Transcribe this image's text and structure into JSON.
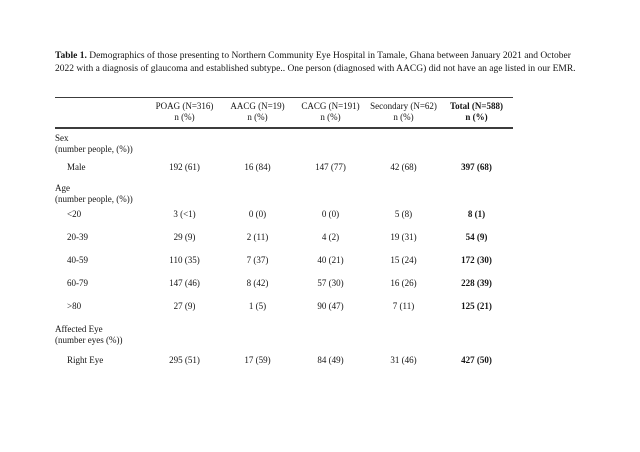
{
  "caption": {
    "label": "Table 1.",
    "text": "Demographics of those presenting to Northern Community Eye Hospital in Tamale, Ghana  between January 2021 and October 2022 with a diagnosis of glaucoma and established subtype.. One person (diagnosed with AACG) did not have an age listed in our EMR."
  },
  "table": {
    "columns": [
      {
        "label": "",
        "sub": ""
      },
      {
        "label": "POAG (N=316)",
        "sub": "n (%)"
      },
      {
        "label": "AACG (N=19)",
        "sub": "n (%)"
      },
      {
        "label": "CACG (N=191)",
        "sub": "n (%)"
      },
      {
        "label": "Secondary (N=62)",
        "sub": "n (%)"
      },
      {
        "label": "Total (N=588)",
        "sub": "n (%)"
      }
    ],
    "rows": [
      {
        "type": "section",
        "label": "Sex",
        "sublabel": "(number people, (%))"
      },
      {
        "type": "data",
        "label": "Male",
        "values": [
          "192 (61)",
          "16 (84)",
          "147 (77)",
          "42 (68)",
          "397 (68)"
        ]
      },
      {
        "type": "section",
        "label": "Age",
        "sublabel": "(number people, (%))"
      },
      {
        "type": "data",
        "label": "<20",
        "values": [
          "3 (<1)",
          "0 (0)",
          "0 (0)",
          "5 (8)",
          "8 (1)"
        ]
      },
      {
        "type": "data",
        "label": "20-39",
        "values": [
          "29 (9)",
          "2 (11)",
          "4 (2)",
          "19 (31)",
          "54 (9)"
        ]
      },
      {
        "type": "data",
        "label": "40-59",
        "values": [
          "110 (35)",
          "7 (37)",
          "40 (21)",
          "15 (24)",
          "172 (30)"
        ]
      },
      {
        "type": "data",
        "label": "60-79",
        "values": [
          "147 (46)",
          "8 (42)",
          "57 (30)",
          "16 (26)",
          "228 (39)"
        ]
      },
      {
        "type": "data",
        "label": ">80",
        "values": [
          "27 (9)",
          "1 (5)",
          "90 (47)",
          "7 (11)",
          "125 (21)"
        ]
      },
      {
        "type": "section",
        "label": "Affected Eye",
        "sublabel": "(number eyes (%))"
      },
      {
        "type": "data",
        "label": "Right Eye",
        "values": [
          "295 (51)",
          "17 (59)",
          "84 (49)",
          "31 (46)",
          "427 (50)"
        ]
      }
    ]
  }
}
